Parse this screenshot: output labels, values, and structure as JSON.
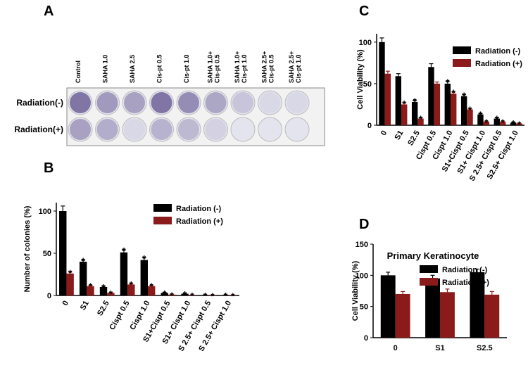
{
  "panel_a": {
    "panel_label": "A",
    "columns": [
      [
        "Control"
      ],
      [
        "SAHA 1.0"
      ],
      [
        "SAHA 2.5"
      ],
      [
        "Cis-pt 0.5"
      ],
      [
        "Cis-pt 1.0"
      ],
      [
        "SAHA 1.0+",
        "Cis-pt 0.5"
      ],
      [
        "SAHA 1.0+",
        "Cis-pt 1.0"
      ],
      [
        "SAHA 2.5+",
        "Cis-pt 0.5"
      ],
      [
        "SAHA 2.5+",
        "Cis-pt 1.0"
      ]
    ],
    "rows": [
      "Radiation(-)",
      "Radiation(+)"
    ]
  },
  "chart_data": [
    {
      "type": "bar",
      "panel_label": "B",
      "y_label": "Number of colonies (%)",
      "categories": [
        "0",
        "S1",
        "S2.5",
        "Cispt 0.5",
        "Cispt 1.0",
        "S1+Cispt 0.5",
        "S1+ Cispt 1.0",
        "S 2.5+ Cispt 0.5",
        "S 2.5+ Cispt 1.0"
      ],
      "series": [
        {
          "name": "Radiation (-)",
          "color": "#000000",
          "values": [
            100,
            40,
            10,
            51,
            42,
            3,
            2,
            0.5,
            0.5
          ],
          "errors": [
            6,
            2,
            1,
            3,
            3,
            0.5,
            0.5,
            0.2,
            0.2
          ],
          "stars": [
            null,
            "*",
            "*",
            "*",
            "*",
            "*",
            "*",
            "*",
            "*"
          ]
        },
        {
          "name": "Radiation (+)",
          "color": "#8b1a1a",
          "values": [
            26,
            11,
            3,
            13,
            11,
            1,
            0.5,
            0.3,
            0.3
          ],
          "errors": [
            2,
            1,
            0.5,
            1,
            1,
            0.3,
            0.2,
            0.1,
            0.1
          ],
          "stars": [
            "*",
            "*",
            "*",
            "*",
            "*",
            "*",
            "*",
            "*",
            "*"
          ]
        }
      ],
      "ylim": [
        0,
        110
      ],
      "yticks": [
        0,
        50,
        100
      ]
    },
    {
      "type": "bar",
      "panel_label": "C",
      "y_label": "Cell Viability (%)",
      "categories": [
        "0",
        "S1",
        "S2.5",
        "Cispt 0.5",
        "Cispt 1.0",
        "S1+Cispt 0.5",
        "S1+ Cispt 1.0",
        "S 2.5+ Cispt 0.5",
        "S2.5+ Cispt 1.0"
      ],
      "series": [
        {
          "name": "Radiation (-)",
          "color": "#000000",
          "values": [
            100,
            59,
            28,
            70,
            50,
            35,
            13,
            8,
            3
          ],
          "errors": [
            5,
            3,
            2,
            4,
            3,
            2,
            1,
            1,
            0.5
          ],
          "stars": [
            null,
            null,
            "*",
            null,
            "*",
            "*",
            "*",
            "*",
            "*"
          ]
        },
        {
          "name": "Radiation (+)",
          "color": "#8b1a1a",
          "values": [
            62,
            25,
            8,
            50,
            38,
            19,
            4,
            4,
            2
          ],
          "errors": [
            3,
            2,
            1,
            2,
            2,
            1,
            0.5,
            0.5,
            0.3
          ],
          "stars": [
            null,
            "*",
            "*",
            null,
            "*",
            "*",
            "*",
            "*",
            "*"
          ]
        }
      ],
      "ylim": [
        0,
        110
      ],
      "yticks": [
        0,
        50,
        100
      ]
    },
    {
      "type": "bar",
      "panel_label": "D",
      "title": "Primary Keratinocyte",
      "y_label": "Cell Viability (%)",
      "categories": [
        "0",
        "S1",
        "S2.5"
      ],
      "series": [
        {
          "name": "Radiation (-)",
          "color": "#000000",
          "values": [
            100,
            95,
            105
          ],
          "errors": [
            5,
            5,
            5
          ]
        },
        {
          "name": "Radiation (+)",
          "color": "#8b1a1a",
          "values": [
            70,
            73,
            69
          ],
          "errors": [
            4,
            5,
            5
          ]
        }
      ],
      "ylim": [
        0,
        150
      ],
      "yticks": [
        0,
        50,
        100,
        150
      ]
    }
  ]
}
